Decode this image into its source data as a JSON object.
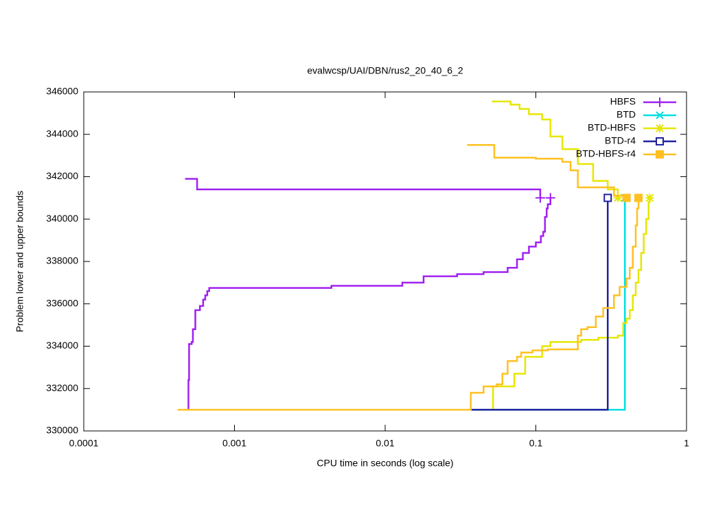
{
  "chart_data": {
    "type": "line",
    "title": "evalwcsp/UAI/DBN/rus2_20_40_6_2",
    "x_label": "CPU time in seconds (log scale)",
    "y_label": "Problem lower and upper bounds",
    "x_log": true,
    "line_style": "steps",
    "legend_position": "top-right",
    "xlim": [
      0.0001,
      1
    ],
    "xticks": [
      0.0001,
      0.001,
      0.01,
      0.1,
      1
    ],
    "ylim": [
      330000,
      346000
    ],
    "yticks": [
      330000,
      332000,
      334000,
      336000,
      338000,
      340000,
      342000,
      344000,
      346000
    ],
    "series": [
      {
        "name": "HBFS",
        "color": "#a020f0",
        "marker": "plus",
        "x": [
          0.00047,
          0.000565,
          0.107,
          null,
          0.00049,
          0.000495,
          0.0005,
          0.00052,
          0.00053,
          0.00055,
          0.00059,
          0.00062,
          0.00064,
          0.00066,
          0.00068,
          0.0044,
          0.013,
          0.018,
          0.03,
          0.045,
          0.065,
          0.075,
          0.082,
          0.09,
          0.1,
          0.108,
          0.112,
          0.115,
          0.118,
          0.12,
          0.125
        ],
        "values": [
          341900,
          341400,
          341000,
          null,
          331000,
          332400,
          334100,
          334200,
          334800,
          335700,
          335900,
          336200,
          336400,
          336600,
          336750,
          336850,
          337000,
          337300,
          337400,
          337500,
          337700,
          338100,
          338400,
          338700,
          338900,
          339200,
          339400,
          340100,
          340500,
          340700,
          341000
        ],
        "marker_x": [
          0.107,
          0.125
        ],
        "marker_values": [
          341000,
          341000
        ]
      },
      {
        "name": "BTD",
        "color": "#00e0e0",
        "marker": "cross",
        "x": [
          0.037,
          0.39
        ],
        "values": [
          331000,
          341000
        ],
        "marker_x": [
          0.39
        ],
        "marker_values": [
          341000
        ]
      },
      {
        "name": "BTD-HBFS",
        "color": "#e6e600",
        "marker": "star",
        "x": [
          0.051,
          0.068,
          0.078,
          0.09,
          0.11,
          0.125,
          0.15,
          0.19,
          0.24,
          0.3,
          0.35,
          null,
          0.052,
          0.052,
          0.072,
          0.085,
          0.11,
          0.125,
          0.2,
          0.26,
          0.35,
          0.38,
          0.4,
          0.42,
          0.44,
          0.46,
          0.48,
          0.5,
          0.52,
          0.54,
          0.56,
          0.57
        ],
        "values": [
          345550,
          345400,
          345200,
          344950,
          344700,
          343900,
          343300,
          342600,
          341800,
          341400,
          341000,
          null,
          331000,
          332100,
          332700,
          333500,
          334000,
          334200,
          334300,
          334400,
          334500,
          335100,
          335300,
          335700,
          336400,
          337000,
          337600,
          338400,
          339300,
          340000,
          340800,
          341000
        ],
        "marker_x": [
          0.35,
          0.57
        ],
        "marker_values": [
          341000,
          341000
        ]
      },
      {
        "name": "BTD-r4",
        "color": "#2020a0",
        "marker": "square-open",
        "x": [
          0.037,
          0.3
        ],
        "values": [
          331000,
          341000
        ],
        "marker_x": [
          0.3
        ],
        "marker_values": [
          341000
        ]
      },
      {
        "name": "BTD-HBFS-r4",
        "color": "#ffc020",
        "marker": "square-filled",
        "x": [
          0.035,
          0.053,
          0.1,
          0.15,
          0.17,
          0.19,
          0.33,
          0.4,
          null,
          0.00042,
          0.037,
          0.045,
          0.055,
          0.06,
          0.065,
          0.075,
          0.08,
          0.095,
          0.12,
          0.19,
          0.2,
          0.22,
          0.25,
          0.28,
          0.33,
          0.36,
          0.4,
          0.42,
          0.44,
          0.46,
          0.47,
          0.48
        ],
        "values": [
          343500,
          342900,
          342850,
          342700,
          342300,
          341500,
          341100,
          341000,
          null,
          331000,
          331800,
          332100,
          332200,
          332700,
          333300,
          333500,
          333700,
          333800,
          333850,
          334500,
          334800,
          334900,
          335400,
          335800,
          336400,
          336800,
          337200,
          337700,
          338700,
          339700,
          340500,
          341000
        ],
        "marker_x": [
          0.4,
          0.48
        ],
        "marker_values": [
          341000,
          341000
        ]
      }
    ]
  }
}
